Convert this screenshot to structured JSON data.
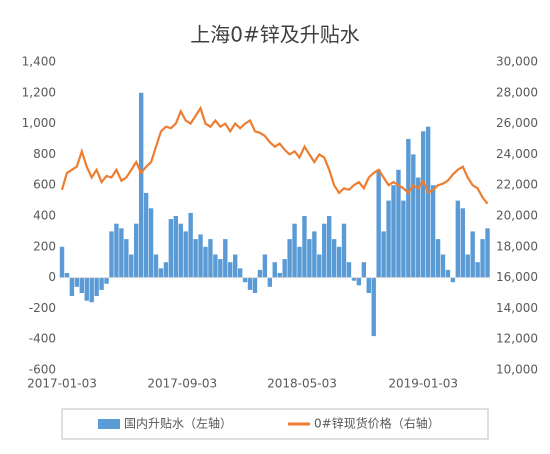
{
  "chart_data": {
    "type": "bar-line",
    "title": "上海0#锌及升贴水",
    "x": [
      "2017-01-03",
      "2017-01-13",
      "2017-01-23",
      "2017-02-02",
      "2017-02-12",
      "2017-02-22",
      "2017-03-04",
      "2017-03-14",
      "2017-03-24",
      "2017-04-03",
      "2017-04-13",
      "2017-04-23",
      "2017-05-03",
      "2017-05-13",
      "2017-05-23",
      "2017-06-02",
      "2017-06-12",
      "2017-06-22",
      "2017-07-02",
      "2017-07-12",
      "2017-07-22",
      "2017-08-01",
      "2017-08-11",
      "2017-08-21",
      "2017-08-31",
      "2017-09-10",
      "2017-09-20",
      "2017-09-30",
      "2017-10-10",
      "2017-10-20",
      "2017-10-30",
      "2017-11-09",
      "2017-11-19",
      "2017-11-29",
      "2017-12-09",
      "2017-12-19",
      "2017-12-29",
      "2018-01-08",
      "2018-01-18",
      "2018-01-28",
      "2018-02-07",
      "2018-02-17",
      "2018-02-27",
      "2018-03-09",
      "2018-03-19",
      "2018-03-29",
      "2018-04-08",
      "2018-04-18",
      "2018-04-28",
      "2018-05-08",
      "2018-05-18",
      "2018-05-28",
      "2018-06-07",
      "2018-06-17",
      "2018-06-27",
      "2018-07-07",
      "2018-07-17",
      "2018-07-27",
      "2018-08-06",
      "2018-08-16",
      "2018-08-26",
      "2018-09-05",
      "2018-09-15",
      "2018-09-25",
      "2018-10-05",
      "2018-10-15",
      "2018-10-25",
      "2018-11-04",
      "2018-11-14",
      "2018-11-24",
      "2018-12-04",
      "2018-12-14",
      "2018-12-24",
      "2019-01-03",
      "2019-01-13",
      "2019-01-23",
      "2019-02-02",
      "2019-02-12",
      "2019-02-22",
      "2019-03-04",
      "2019-03-14",
      "2019-03-24",
      "2019-04-03",
      "2019-04-13",
      "2019-04-23",
      "2019-05-03",
      "2019-05-13"
    ],
    "xlim": [
      "2017-01-03",
      "2019-05-18"
    ],
    "xticks": [
      "2017-01-03",
      "2017-09-03",
      "2018-05-03",
      "2019-01-03"
    ],
    "ylim": [
      -600,
      1400
    ],
    "yticks": [
      -600,
      -400,
      -200,
      0,
      200,
      400,
      600,
      800,
      {
        "value": 1000,
        "label": "1,000"
      },
      {
        "value": 1200,
        "label": "1,200"
      },
      {
        "value": 1400,
        "label": "1,400"
      }
    ],
    "y2lim": [
      10000,
      30000
    ],
    "y2ticks": [
      {
        "value": 10000,
        "label": "10,000"
      },
      {
        "value": 12000,
        "label": "12,000"
      },
      {
        "value": 14000,
        "label": "14,000"
      },
      {
        "value": 16000,
        "label": "16,000"
      },
      {
        "value": 18000,
        "label": "18,000"
      },
      {
        "value": 20000,
        "label": "20,000"
      },
      {
        "value": 22000,
        "label": "22,000"
      },
      {
        "value": 24000,
        "label": "24,000"
      },
      {
        "value": 26000,
        "label": "26,000"
      },
      {
        "value": 28000,
        "label": "28,000"
      },
      {
        "value": 30000,
        "label": "30,000"
      }
    ],
    "series": [
      {
        "name": "国内升贴水（左轴）",
        "kind": "bar",
        "color": "#5b9bd5",
        "values": [
          200,
          30,
          -120,
          -60,
          -100,
          -150,
          -160,
          -120,
          -80,
          -40,
          300,
          350,
          320,
          250,
          150,
          350,
          1200,
          550,
          450,
          150,
          60,
          100,
          380,
          400,
          350,
          300,
          420,
          250,
          280,
          200,
          250,
          150,
          120,
          250,
          100,
          150,
          60,
          -30,
          -80,
          -100,
          50,
          150,
          -60,
          100,
          30,
          120,
          250,
          350,
          200,
          400,
          250,
          300,
          150,
          350,
          400,
          250,
          200,
          350,
          100,
          -20,
          -50,
          100,
          -100,
          -380,
          700,
          300,
          500,
          600,
          700,
          500,
          900,
          800,
          650,
          950,
          980,
          600,
          250,
          150,
          50,
          -30,
          500,
          450,
          150,
          300,
          100,
          250,
          320
        ]
      },
      {
        "name": "0#锌现货价格（右轴）",
        "kind": "line",
        "axis": "y2",
        "color": "#ed7d31",
        "values": [
          21700,
          22800,
          23000,
          23200,
          24200,
          23200,
          22500,
          23000,
          22200,
          22600,
          22500,
          23000,
          22300,
          22500,
          23000,
          23500,
          22800,
          23200,
          23500,
          24500,
          25500,
          25800,
          25700,
          26000,
          26800,
          26200,
          26000,
          26500,
          27000,
          26000,
          25800,
          26200,
          25800,
          26000,
          25500,
          26000,
          25700,
          26000,
          26200,
          25500,
          25400,
          25200,
          24800,
          24500,
          24700,
          24300,
          24000,
          24200,
          23800,
          24500,
          24000,
          23500,
          24000,
          23800,
          23000,
          22000,
          21500,
          21800,
          21700,
          22000,
          22200,
          21800,
          22500,
          22800,
          23000,
          22500,
          22000,
          22200,
          22000,
          21800,
          21500,
          22000,
          21800,
          22300,
          21500,
          21700,
          22000,
          22100,
          22300,
          22700,
          23000,
          23200,
          22500,
          22000,
          21800,
          21200,
          20800
        ]
      }
    ]
  }
}
